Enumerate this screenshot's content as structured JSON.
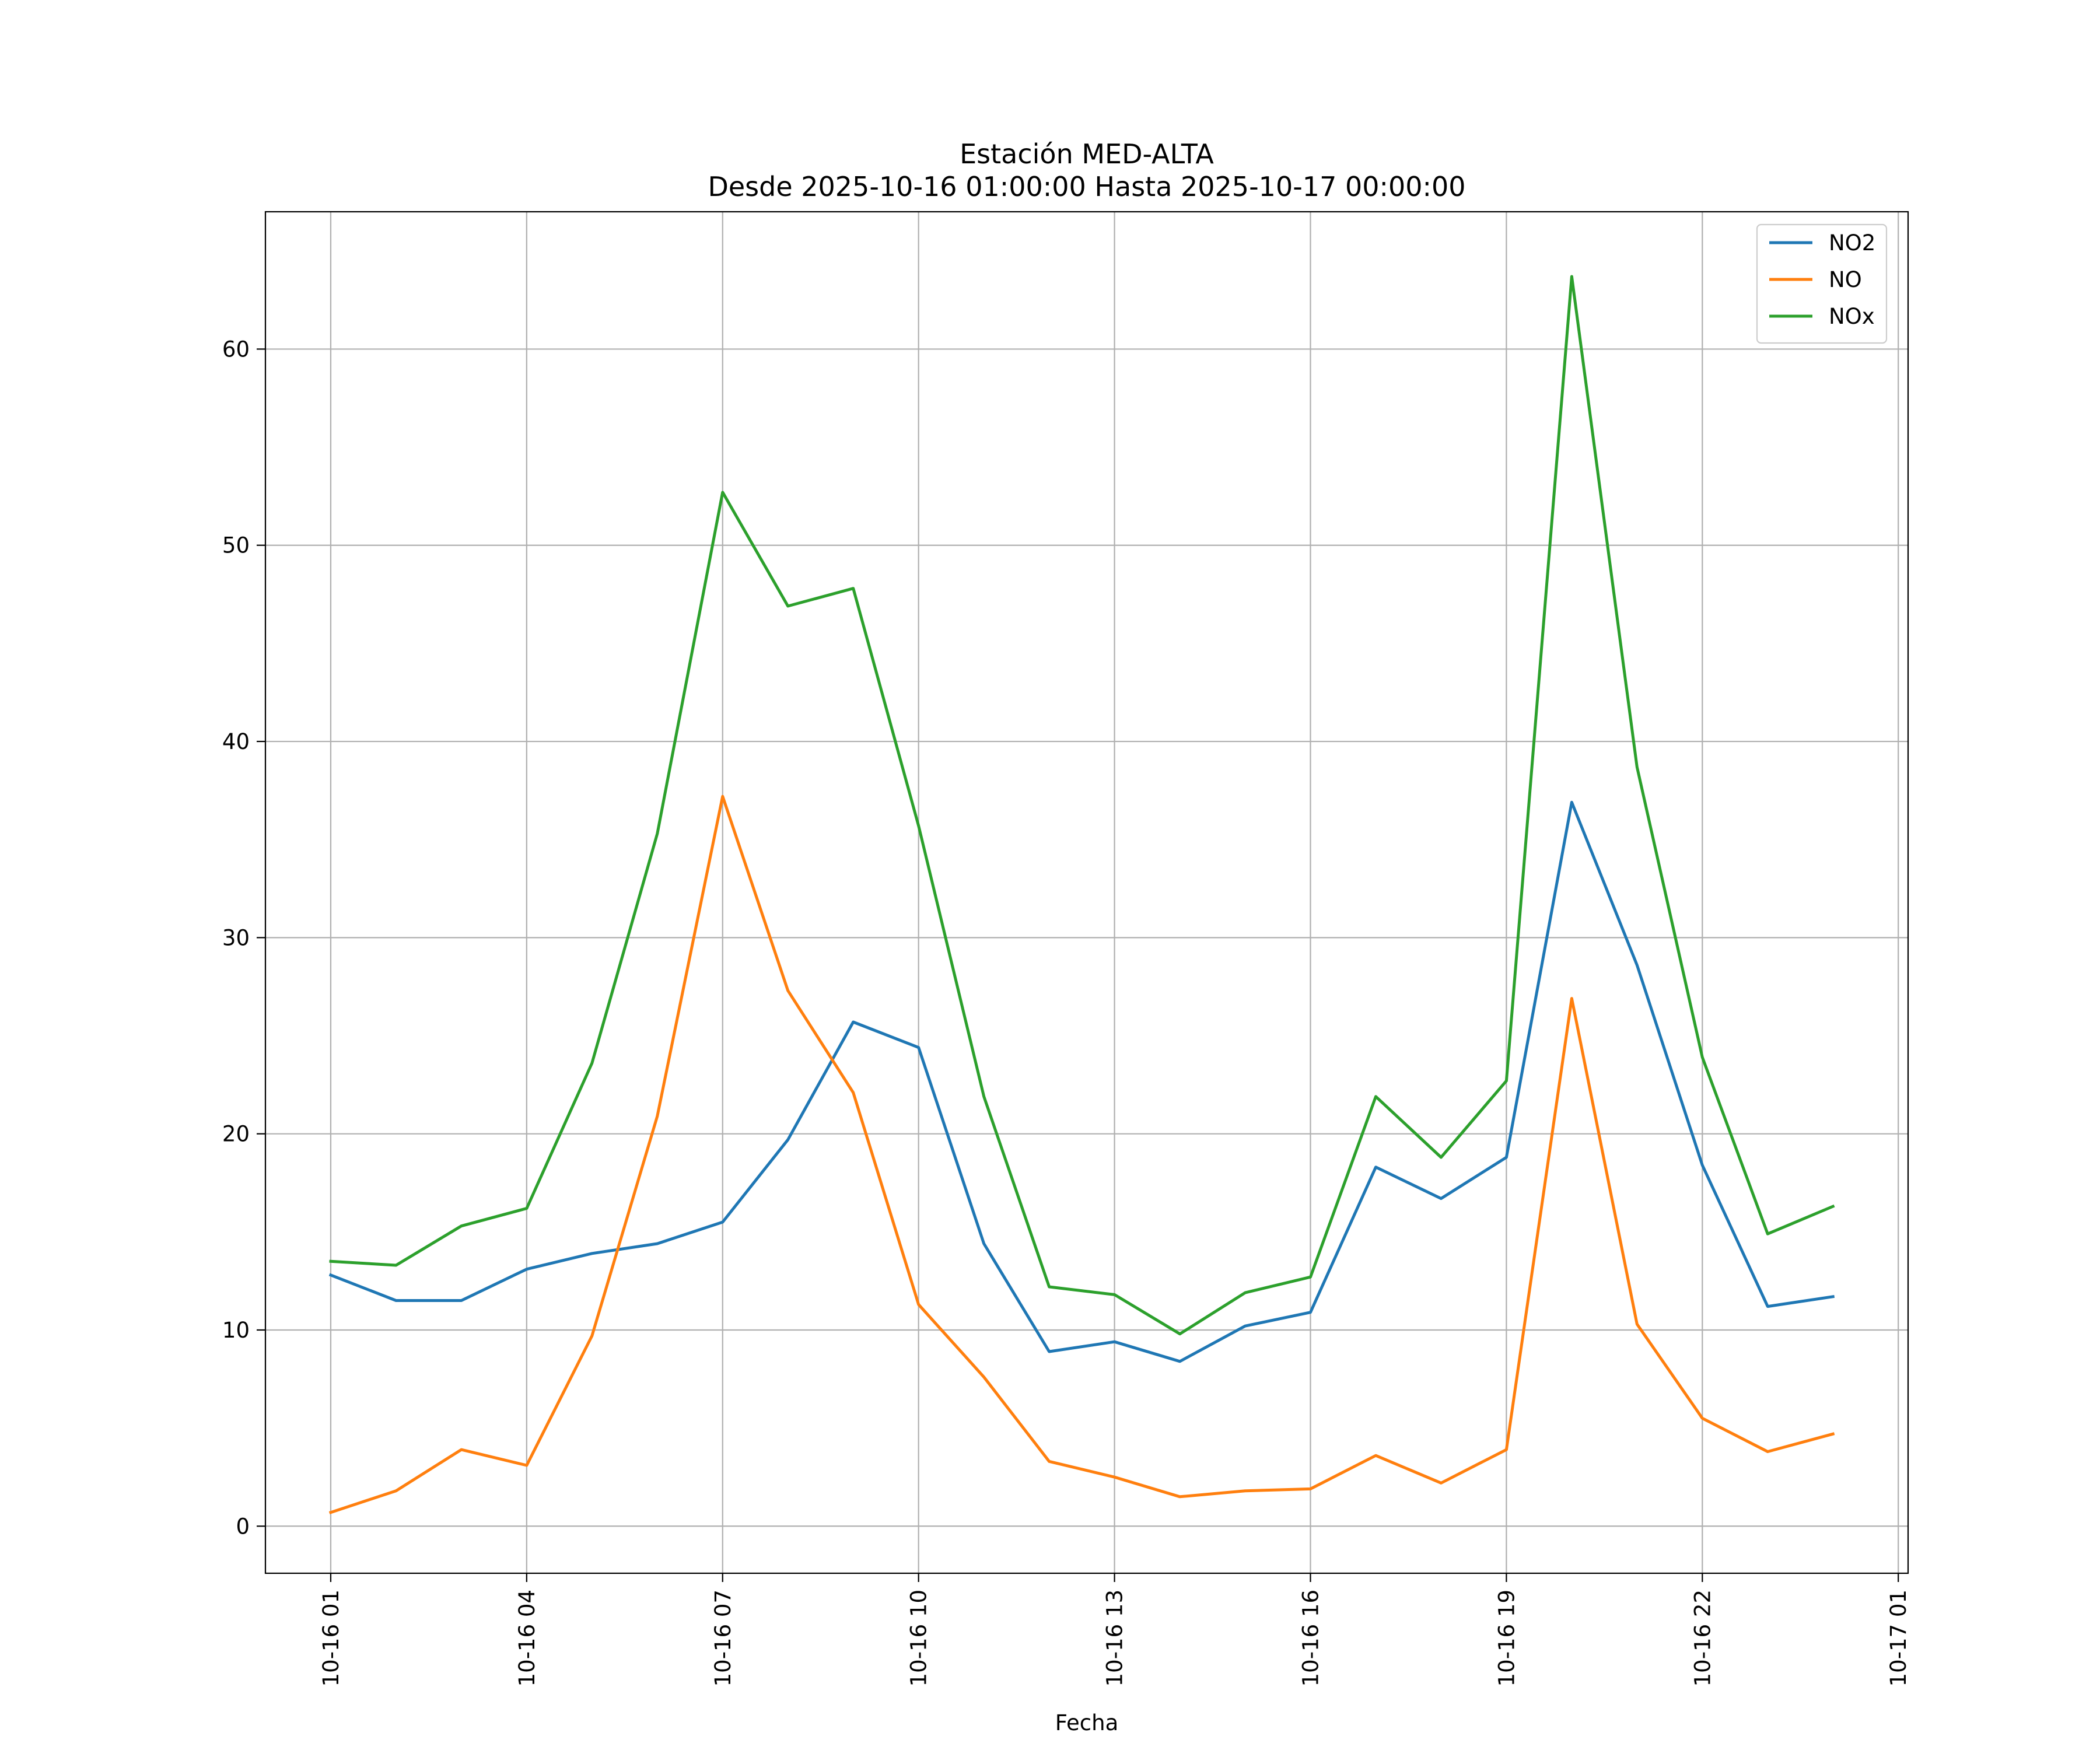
{
  "chart_data": {
    "type": "line",
    "title": "Estación MED-ALTA",
    "subtitle": "Desde 2025-10-16 01:00:00 Hasta 2025-10-17 00:00:00",
    "xlabel": "Fecha",
    "ylabel": "",
    "x": [
      "2025-10-16 01:00",
      "2025-10-16 02:00",
      "2025-10-16 03:00",
      "2025-10-16 04:00",
      "2025-10-16 05:00",
      "2025-10-16 06:00",
      "2025-10-16 07:00",
      "2025-10-16 08:00",
      "2025-10-16 09:00",
      "2025-10-16 10:00",
      "2025-10-16 11:00",
      "2025-10-16 12:00",
      "2025-10-16 13:00",
      "2025-10-16 14:00",
      "2025-10-16 15:00",
      "2025-10-16 16:00",
      "2025-10-16 17:00",
      "2025-10-16 18:00",
      "2025-10-16 19:00",
      "2025-10-16 20:00",
      "2025-10-16 21:00",
      "2025-10-16 22:00",
      "2025-10-16 23:00",
      "2025-10-17 00:00"
    ],
    "xlim": [
      "2025-10-16 00:00",
      "2025-10-17 01:09"
    ],
    "xticks": [
      "10-16 01",
      "10-16 04",
      "10-16 07",
      "10-16 10",
      "10-16 13",
      "10-16 16",
      "10-16 19",
      "10-16 22",
      "10-17 01"
    ],
    "ylim": [
      -2.4,
      67
    ],
    "yticks": [
      "0",
      "10",
      "20",
      "30",
      "40",
      "50",
      "60"
    ],
    "grid": true,
    "legend_position": "top-right",
    "series": [
      {
        "name": "NO2",
        "color": "#1f77b4",
        "values": [
          12.8,
          11.5,
          11.5,
          13.1,
          13.9,
          14.4,
          15.5,
          19.7,
          25.7,
          24.4,
          14.4,
          8.9,
          9.4,
          8.4,
          10.2,
          10.9,
          18.3,
          16.7,
          18.8,
          36.9,
          28.6,
          18.4,
          11.2,
          11.7
        ]
      },
      {
        "name": "NO",
        "color": "#ff7f0e",
        "values": [
          0.7,
          1.8,
          3.9,
          3.1,
          9.7,
          20.9,
          37.2,
          27.3,
          22.1,
          11.3,
          7.6,
          3.3,
          2.5,
          1.5,
          1.8,
          1.9,
          3.6,
          2.2,
          3.9,
          26.9,
          10.3,
          5.5,
          3.8,
          4.7
        ]
      },
      {
        "name": "NOx",
        "color": "#2ca02c",
        "values": [
          13.5,
          13.3,
          15.3,
          16.2,
          23.6,
          35.3,
          52.7,
          46.9,
          47.8,
          35.7,
          21.9,
          12.2,
          11.8,
          9.8,
          11.9,
          12.7,
          21.9,
          18.8,
          22.7,
          63.7,
          38.7,
          23.9,
          14.9,
          16.3
        ]
      }
    ]
  }
}
